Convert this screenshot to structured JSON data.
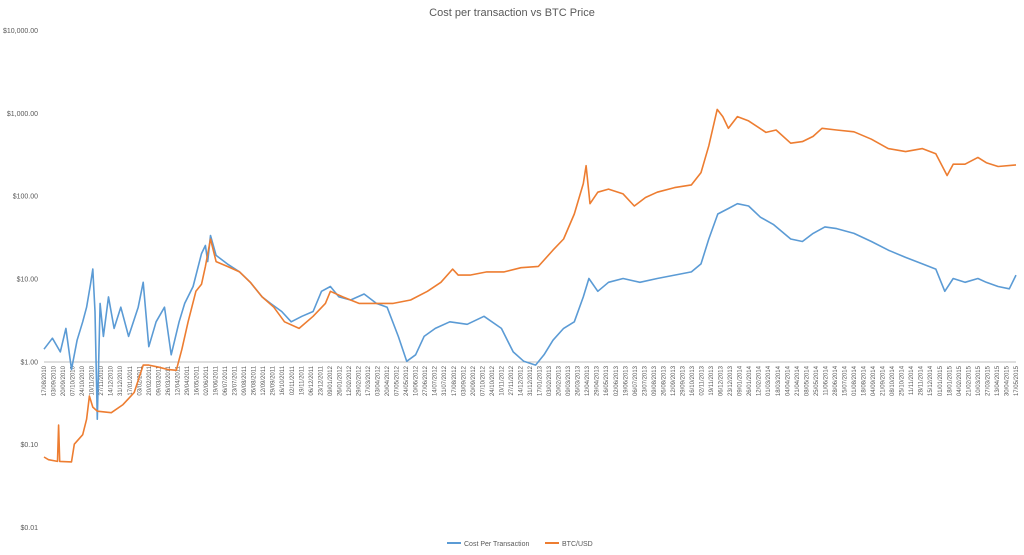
{
  "chart_data": {
    "type": "line",
    "title": "Cost per transaction vs BTC Price",
    "xlabel": "",
    "ylabel": "",
    "y_scale": "log",
    "ylim": [
      0.01,
      10000
    ],
    "y_ticks": [
      0.01,
      0.1,
      1,
      10,
      100,
      1000,
      10000
    ],
    "y_tick_labels": [
      "$0.01",
      "$0.10",
      "$1.00",
      "$10.00",
      "$100.00",
      "$1,000.00",
      "$10,000.00"
    ],
    "xlim": [
      "2010-08-17",
      "2015-05-17"
    ],
    "x_tick_step_days": 17,
    "grid": false,
    "legend_position": "bottom",
    "series": [
      {
        "name": "Cost Per Transaction",
        "color": "#5b9bd5",
        "points": [
          [
            "2010-08-17",
            1.4
          ],
          [
            "2010-09-01",
            1.9
          ],
          [
            "2010-09-15",
            1.3
          ],
          [
            "2010-09-25",
            2.5
          ],
          [
            "2010-10-05",
            0.8
          ],
          [
            "2010-10-15",
            1.8
          ],
          [
            "2010-10-25",
            3.0
          ],
          [
            "2010-11-01",
            4.5
          ],
          [
            "2010-11-08",
            8.5
          ],
          [
            "2010-11-12",
            13.0
          ],
          [
            "2010-11-16",
            4.0
          ],
          [
            "2010-11-20",
            0.2
          ],
          [
            "2010-11-25",
            5.0
          ],
          [
            "2010-12-01",
            2.0
          ],
          [
            "2010-12-10",
            6.0
          ],
          [
            "2010-12-20",
            2.5
          ],
          [
            "2011-01-01",
            4.5
          ],
          [
            "2011-01-15",
            2.0
          ],
          [
            "2011-02-01",
            4.5
          ],
          [
            "2011-02-10",
            9.0
          ],
          [
            "2011-02-20",
            1.5
          ],
          [
            "2011-03-05",
            3.0
          ],
          [
            "2011-03-20",
            4.5
          ],
          [
            "2011-04-01",
            1.2
          ],
          [
            "2011-04-15",
            3.0
          ],
          [
            "2011-04-25",
            5.0
          ],
          [
            "2011-05-10",
            8.0
          ],
          [
            "2011-05-25",
            20.0
          ],
          [
            "2011-06-01",
            25.0
          ],
          [
            "2011-06-05",
            16.0
          ],
          [
            "2011-06-10",
            33.0
          ],
          [
            "2011-06-20",
            19.0
          ],
          [
            "2011-07-10",
            15.0
          ],
          [
            "2011-08-01",
            12.0
          ],
          [
            "2011-08-20",
            9.0
          ],
          [
            "2011-09-10",
            6.0
          ],
          [
            "2011-09-25",
            5.0
          ],
          [
            "2011-10-15",
            4.0
          ],
          [
            "2011-11-01",
            3.0
          ],
          [
            "2011-11-20",
            3.5
          ],
          [
            "2011-12-10",
            4.0
          ],
          [
            "2011-12-25",
            7.0
          ],
          [
            "2012-01-10",
            8.0
          ],
          [
            "2012-01-25",
            6.0
          ],
          [
            "2012-02-15",
            5.5
          ],
          [
            "2012-03-10",
            6.5
          ],
          [
            "2012-04-01",
            5.0
          ],
          [
            "2012-04-20",
            4.5
          ],
          [
            "2012-05-10",
            2.0
          ],
          [
            "2012-05-25",
            1.0
          ],
          [
            "2012-06-10",
            1.2
          ],
          [
            "2012-06-25",
            2.0
          ],
          [
            "2012-07-15",
            2.5
          ],
          [
            "2012-08-10",
            3.0
          ],
          [
            "2012-09-10",
            2.8
          ],
          [
            "2012-10-10",
            3.5
          ],
          [
            "2012-11-10",
            2.5
          ],
          [
            "2012-12-01",
            1.3
          ],
          [
            "2012-12-20",
            1.0
          ],
          [
            "2013-01-10",
            0.9
          ],
          [
            "2013-01-25",
            1.2
          ],
          [
            "2013-02-10",
            1.8
          ],
          [
            "2013-03-01",
            2.5
          ],
          [
            "2013-03-20",
            3.0
          ],
          [
            "2013-04-05",
            6.0
          ],
          [
            "2013-04-15",
            10.0
          ],
          [
            "2013-05-01",
            7.0
          ],
          [
            "2013-05-20",
            9.0
          ],
          [
            "2013-06-15",
            10.0
          ],
          [
            "2013-07-15",
            9.0
          ],
          [
            "2013-08-15",
            10.0
          ],
          [
            "2013-09-15",
            11.0
          ],
          [
            "2013-10-15",
            12.0
          ],
          [
            "2013-11-01",
            15.0
          ],
          [
            "2013-11-15",
            30.0
          ],
          [
            "2013-12-01",
            60.0
          ],
          [
            "2013-12-20",
            70.0
          ],
          [
            "2014-01-05",
            80.0
          ],
          [
            "2014-01-25",
            75.0
          ],
          [
            "2014-02-15",
            55.0
          ],
          [
            "2014-03-10",
            45.0
          ],
          [
            "2014-04-10",
            30.0
          ],
          [
            "2014-05-01",
            28.0
          ],
          [
            "2014-05-20",
            35.0
          ],
          [
            "2014-06-10",
            42.0
          ],
          [
            "2014-07-01",
            40.0
          ],
          [
            "2014-08-01",
            35.0
          ],
          [
            "2014-09-01",
            28.0
          ],
          [
            "2014-10-01",
            22.0
          ],
          [
            "2014-11-01",
            18.0
          ],
          [
            "2014-12-01",
            15.0
          ],
          [
            "2014-12-25",
            13.0
          ],
          [
            "2015-01-10",
            7.0
          ],
          [
            "2015-01-25",
            10.0
          ],
          [
            "2015-02-15",
            9.0
          ],
          [
            "2015-03-10",
            10.0
          ],
          [
            "2015-03-25",
            9.0
          ],
          [
            "2015-04-15",
            8.0
          ],
          [
            "2015-05-05",
            7.5
          ],
          [
            "2015-05-17",
            11.0
          ]
        ]
      },
      {
        "name": "BTC/USD",
        "color": "#ed7d31",
        "points": [
          [
            "2010-08-17",
            0.07
          ],
          [
            "2010-08-25",
            0.065
          ],
          [
            "2010-09-10",
            0.062
          ],
          [
            "2010-09-12",
            0.17
          ],
          [
            "2010-09-14",
            0.062
          ],
          [
            "2010-10-05",
            0.061
          ],
          [
            "2010-10-10",
            0.1
          ],
          [
            "2010-10-25",
            0.13
          ],
          [
            "2010-11-01",
            0.2
          ],
          [
            "2010-11-06",
            0.38
          ],
          [
            "2010-11-12",
            0.28
          ],
          [
            "2010-11-20",
            0.25
          ],
          [
            "2010-12-15",
            0.24
          ],
          [
            "2011-01-05",
            0.3
          ],
          [
            "2011-01-25",
            0.42
          ],
          [
            "2011-02-10",
            0.9
          ],
          [
            "2011-02-20",
            0.9
          ],
          [
            "2011-03-10",
            0.85
          ],
          [
            "2011-03-25",
            0.8
          ],
          [
            "2011-04-10",
            0.78
          ],
          [
            "2011-04-20",
            1.4
          ],
          [
            "2011-05-01",
            3.0
          ],
          [
            "2011-05-15",
            7.0
          ],
          [
            "2011-05-25",
            8.5
          ],
          [
            "2011-06-01",
            14.0
          ],
          [
            "2011-06-10",
            30.0
          ],
          [
            "2011-06-20",
            16.0
          ],
          [
            "2011-07-10",
            14.0
          ],
          [
            "2011-08-01",
            12.0
          ],
          [
            "2011-08-20",
            9.0
          ],
          [
            "2011-09-10",
            6.0
          ],
          [
            "2011-10-01",
            4.5
          ],
          [
            "2011-10-20",
            3.0
          ],
          [
            "2011-11-15",
            2.5
          ],
          [
            "2011-12-10",
            3.5
          ],
          [
            "2012-01-01",
            5.0
          ],
          [
            "2012-01-10",
            7.0
          ],
          [
            "2012-02-01",
            6.0
          ],
          [
            "2012-03-01",
            5.0
          ],
          [
            "2012-04-01",
            5.0
          ],
          [
            "2012-05-01",
            5.0
          ],
          [
            "2012-06-01",
            5.5
          ],
          [
            "2012-07-01",
            7.0
          ],
          [
            "2012-07-25",
            9.0
          ],
          [
            "2012-08-15",
            13.0
          ],
          [
            "2012-08-25",
            11.0
          ],
          [
            "2012-09-15",
            11.0
          ],
          [
            "2012-10-15",
            12.0
          ],
          [
            "2012-11-15",
            12.0
          ],
          [
            "2012-12-15",
            13.5
          ],
          [
            "2013-01-15",
            14.0
          ],
          [
            "2013-02-10",
            22.0
          ],
          [
            "2013-03-01",
            30.0
          ],
          [
            "2013-03-20",
            60.0
          ],
          [
            "2013-04-05",
            140.0
          ],
          [
            "2013-04-10",
            230.0
          ],
          [
            "2013-04-17",
            80.0
          ],
          [
            "2013-05-01",
            110.0
          ],
          [
            "2013-05-20",
            120.0
          ],
          [
            "2013-06-15",
            105.0
          ],
          [
            "2013-07-05",
            75.0
          ],
          [
            "2013-07-25",
            95.0
          ],
          [
            "2013-08-15",
            110.0
          ],
          [
            "2013-09-15",
            125.0
          ],
          [
            "2013-10-15",
            135.0
          ],
          [
            "2013-11-01",
            190.0
          ],
          [
            "2013-11-15",
            400.0
          ],
          [
            "2013-11-30",
            1100.0
          ],
          [
            "2013-12-10",
            900.0
          ],
          [
            "2013-12-20",
            650.0
          ],
          [
            "2014-01-05",
            900.0
          ],
          [
            "2014-01-25",
            800.0
          ],
          [
            "2014-02-25",
            580.0
          ],
          [
            "2014-03-15",
            620.0
          ],
          [
            "2014-04-10",
            430.0
          ],
          [
            "2014-05-01",
            450.0
          ],
          [
            "2014-05-20",
            520.0
          ],
          [
            "2014-06-05",
            650.0
          ],
          [
            "2014-07-01",
            620.0
          ],
          [
            "2014-08-01",
            590.0
          ],
          [
            "2014-09-01",
            480.0
          ],
          [
            "2014-10-01",
            370.0
          ],
          [
            "2014-11-01",
            340.0
          ],
          [
            "2014-12-01",
            370.0
          ],
          [
            "2014-12-25",
            320.0
          ],
          [
            "2015-01-14",
            175.0
          ],
          [
            "2015-01-25",
            240.0
          ],
          [
            "2015-02-15",
            240.0
          ],
          [
            "2015-03-10",
            290.0
          ],
          [
            "2015-03-25",
            250.0
          ],
          [
            "2015-04-15",
            225.0
          ],
          [
            "2015-05-17",
            235.0
          ]
        ]
      }
    ]
  }
}
